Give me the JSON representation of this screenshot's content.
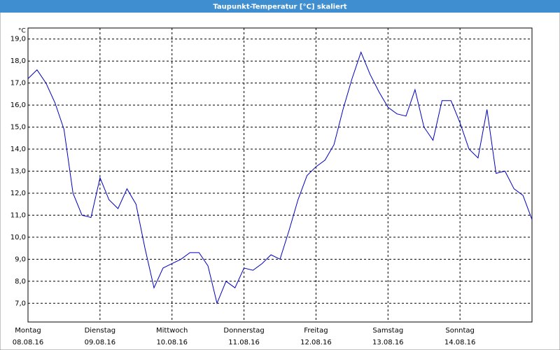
{
  "chart_data": {
    "type": "line",
    "title": "Taupunkt-Temperatur [°C] skaliert",
    "y_unit": "°C",
    "days": [
      {
        "name": "Montag",
        "date": "08.08.16"
      },
      {
        "name": "Dienstag",
        "date": "09.08.16"
      },
      {
        "name": "Mittwoch",
        "date": "10.08.16"
      },
      {
        "name": "Donnerstag",
        "date": "11.08.16"
      },
      {
        "name": "Freitag",
        "date": "12.08.16"
      },
      {
        "name": "Samstag",
        "date": "13.08.16"
      },
      {
        "name": "Sonntag",
        "date": "14.08.16"
      }
    ],
    "values": [
      17.2,
      17.6,
      17.0,
      16.1,
      14.9,
      12.0,
      11.0,
      10.9,
      12.7,
      11.7,
      11.3,
      12.2,
      11.5,
      9.5,
      7.7,
      8.6,
      8.8,
      9.0,
      9.3,
      9.3,
      8.7,
      7.0,
      8.0,
      7.7,
      8.6,
      8.5,
      8.8,
      9.2,
      9.0,
      10.3,
      11.7,
      12.8,
      13.2,
      13.5,
      14.2,
      15.8,
      17.2,
      18.4,
      17.4,
      16.6,
      15.9,
      15.6,
      15.5,
      16.7,
      15.0,
      14.4,
      16.2,
      16.2,
      15.2,
      14.0,
      13.6,
      15.8,
      12.9,
      13.0,
      12.2,
      11.9,
      10.8
    ],
    "color": "#0000c0",
    "ylim": [
      6.15,
      19.5
    ],
    "yticks": [
      {
        "value": 7,
        "label": "7,0"
      },
      {
        "value": 8,
        "label": "8,0"
      },
      {
        "value": 9,
        "label": "9,0"
      },
      {
        "value": 10,
        "label": "10,0"
      },
      {
        "value": 11,
        "label": "11,0"
      },
      {
        "value": 12,
        "label": "12,0"
      },
      {
        "value": 13,
        "label": "13,0"
      },
      {
        "value": 14,
        "label": "14,0"
      },
      {
        "value": 15,
        "label": "15,0"
      },
      {
        "value": 16,
        "label": "16,0"
      },
      {
        "value": 17,
        "label": "17,0"
      },
      {
        "value": 18,
        "label": "18,0"
      },
      {
        "value": 19,
        "label": "19,0"
      }
    ],
    "grid": true
  }
}
